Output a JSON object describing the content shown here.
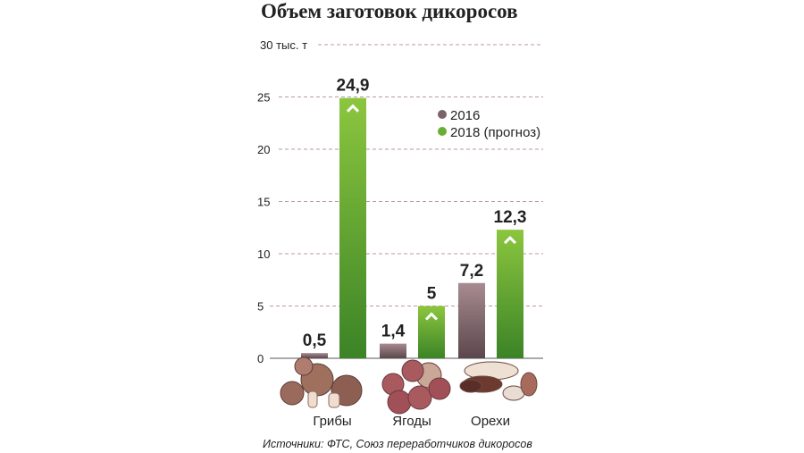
{
  "chart_data": {
    "type": "bar",
    "title": "Объем заготовок дикоросов",
    "categories": [
      "Грибы",
      "Ягоды",
      "Орехи"
    ],
    "series": [
      {
        "name": "2016",
        "values": [
          0.5,
          1.4,
          7.2
        ],
        "color": "#7a6268"
      },
      {
        "name": "2018 (прогноз)",
        "values": [
          24.9,
          5,
          12.3
        ],
        "color": "#6aae35"
      }
    ],
    "value_labels": [
      [
        "0,5",
        "1,4",
        "7,2"
      ],
      [
        "24,9",
        "5",
        "12,3"
      ]
    ],
    "ylim": [
      0,
      30
    ],
    "yticks": [
      0,
      5,
      10,
      15,
      20,
      25,
      30
    ],
    "ytick_labels": [
      "0",
      "5",
      "10",
      "15",
      "20",
      "25",
      "30 тыс. т"
    ],
    "grid": true,
    "legend": "top-right",
    "increase_marker": "chevron-up-icon",
    "source": "Источники: ФТС, Союз переработчиков дикоросов"
  }
}
